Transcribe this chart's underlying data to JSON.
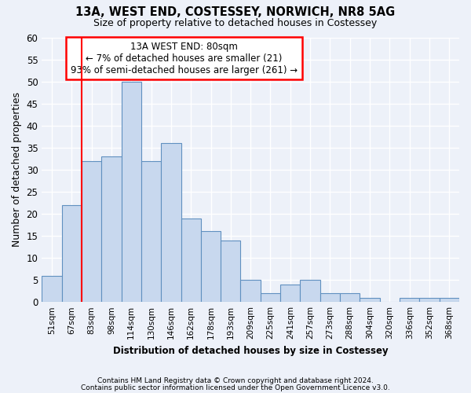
{
  "title1": "13A, WEST END, COSTESSEY, NORWICH, NR8 5AG",
  "title2": "Size of property relative to detached houses in Costessey",
  "xlabel": "Distribution of detached houses by size in Costessey",
  "ylabel": "Number of detached properties",
  "categories": [
    "51sqm",
    "67sqm",
    "83sqm",
    "98sqm",
    "114sqm",
    "130sqm",
    "146sqm",
    "162sqm",
    "178sqm",
    "193sqm",
    "209sqm",
    "225sqm",
    "241sqm",
    "257sqm",
    "273sqm",
    "288sqm",
    "304sqm",
    "320sqm",
    "336sqm",
    "352sqm",
    "368sqm"
  ],
  "values": [
    6,
    22,
    32,
    33,
    50,
    32,
    36,
    19,
    16,
    14,
    5,
    2,
    4,
    5,
    2,
    2,
    1,
    0,
    1,
    1,
    1
  ],
  "bar_color": "#c8d8ee",
  "bar_edge_color": "#6090c0",
  "ylim": [
    0,
    60
  ],
  "yticks": [
    0,
    5,
    10,
    15,
    20,
    25,
    30,
    35,
    40,
    45,
    50,
    55,
    60
  ],
  "property_label": "13A WEST END: 80sqm",
  "annotation_line1": "← 7% of detached houses are smaller (21)",
  "annotation_line2": "93% of semi-detached houses are larger (261) →",
  "red_line_bin_index": 2,
  "footer1": "Contains HM Land Registry data © Crown copyright and database right 2024.",
  "footer2": "Contains public sector information licensed under the Open Government Licence v3.0.",
  "background_color": "#edf1f9",
  "grid_color": "#d0d8e8"
}
